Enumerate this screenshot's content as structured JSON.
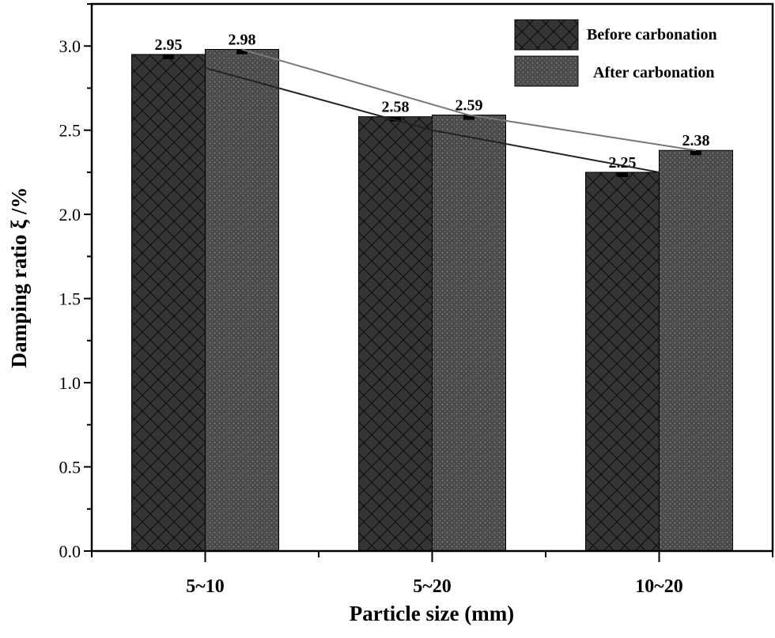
{
  "chart_data": {
    "type": "bar",
    "title": "",
    "xlabel": "Particle size (mm)",
    "ylabel": "Damping ratio ξ /%",
    "categories": [
      "5~10",
      "5~20",
      "10~20"
    ],
    "ylim": [
      0,
      3.25
    ],
    "yticks": [
      "0.0",
      "0.5",
      "1.0",
      "1.5",
      "2.0",
      "2.5",
      "3.0"
    ],
    "grid": false,
    "legend_position": "top-right",
    "series": [
      {
        "name": "Before carbonation",
        "values": [
          2.95,
          2.58,
          2.25
        ],
        "labels": [
          "2.95",
          "2.58",
          "2.25"
        ],
        "color": "#333333",
        "pattern": "crosshatch"
      },
      {
        "name": "After carbonation",
        "values": [
          2.98,
          2.59,
          2.38
        ],
        "labels": [
          "2.98",
          "2.59",
          "2.38"
        ],
        "color": "#555555",
        "pattern": "dots"
      }
    ],
    "trend_lines": true
  }
}
